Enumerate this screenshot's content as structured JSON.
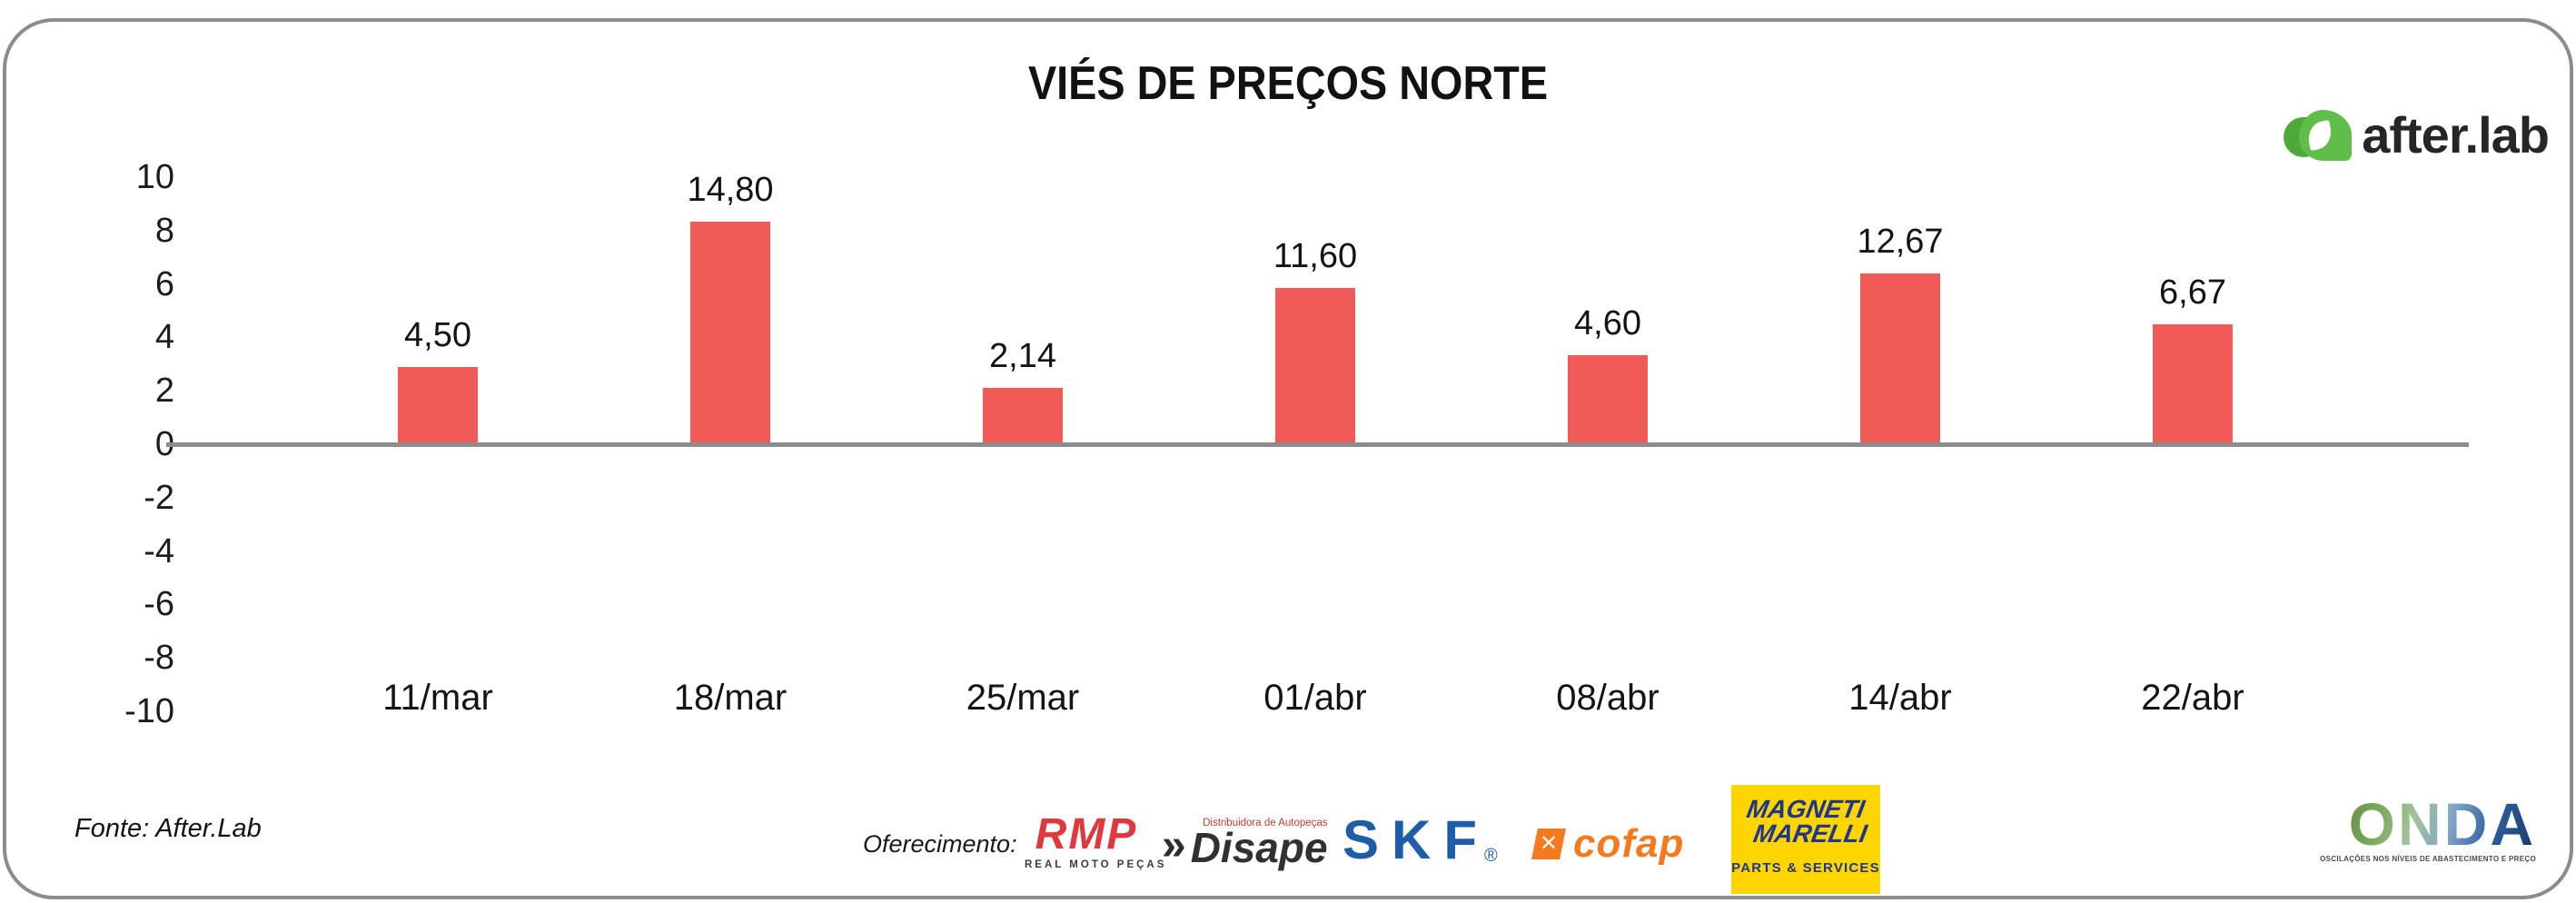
{
  "header": {
    "title": "VIÉS DE PREÇOS NORTE"
  },
  "brand": {
    "text": "after.lab",
    "mark_green_light": "#5FBE48",
    "mark_green_dark": "#4EA83B",
    "text_color": "#272525"
  },
  "chart_data": {
    "type": "bar",
    "title": "VIÉS DE PREÇOS NORTE",
    "categories": [
      "11/mar",
      "18/mar",
      "25/mar",
      "01/abr",
      "08/abr",
      "14/abr",
      "22/abr"
    ],
    "values": [
      4.5,
      14.8,
      2.14,
      11.6,
      4.6,
      12.67,
      6.67
    ],
    "value_labels": [
      "4,50",
      "14,80",
      "2,14",
      "11,60",
      "4,60",
      "12,67",
      "6,67"
    ],
    "plotted_bar_heights_axis_units": [
      2.9,
      8.35,
      2.1,
      5.85,
      3.35,
      6.4,
      4.5
    ],
    "ylim": [
      -10,
      10
    ],
    "ytick_labels": [
      "10",
      "8",
      "6",
      "4",
      "2",
      "0",
      "-2",
      "-4",
      "-6",
      "-8",
      "-10"
    ],
    "xlabel": "",
    "ylabel": "",
    "grid": false,
    "legend": null,
    "bar_color": "#F15B57",
    "axis_color": "#8C8C8E"
  },
  "footer": {
    "source": "Fonte: After.Lab",
    "sponsors_label": "Oferecimento:",
    "sponsors": [
      {
        "name": "RMP",
        "subtitle": "REAL MOTO PEÇAS",
        "color": "#E0393D"
      },
      {
        "name": "Disape",
        "prefix": "»",
        "tagline": "Distribuidora de Autopeças",
        "color": "#313131",
        "tagline_color": "#C43B31"
      },
      {
        "name": "SKF",
        "registered": "®",
        "color": "#1F5CA9"
      },
      {
        "name": "cofap",
        "mark": "✕",
        "color": "#F4791F"
      },
      {
        "line1": "MAGNETI",
        "line2": "MARELLI",
        "subtitle": "PARTS & SERVICES",
        "bg": "#FFD500",
        "color": "#20368C"
      }
    ],
    "onda": {
      "name": "ONDA",
      "tagline": "OSCILAÇÕES NOS NÍVEIS DE ABASTECIMENTO E PREÇO"
    }
  }
}
